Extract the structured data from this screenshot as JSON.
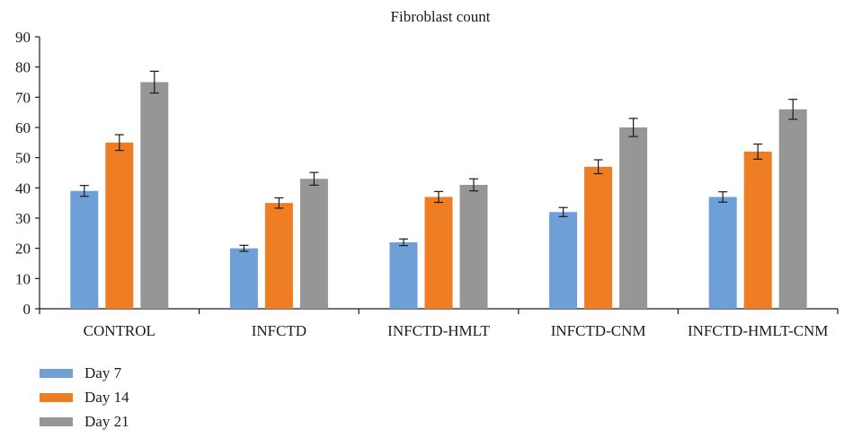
{
  "chart_data": {
    "type": "bar",
    "title": "Fibroblast count",
    "categories": [
      "CONTROL",
      "INFCTD",
      "INFCTD-HMLT",
      "INFCTD-CNM",
      "INFCTD-HMLT-CNM"
    ],
    "series": [
      {
        "name": "Day 7",
        "color": "#6e9fd6",
        "values": [
          39,
          20,
          22,
          32,
          37
        ],
        "errors": [
          1.8,
          1.0,
          1.1,
          1.5,
          1.7
        ]
      },
      {
        "name": "Day 14",
        "color": "#ee7d23",
        "values": [
          55,
          35,
          37,
          47,
          52
        ],
        "errors": [
          2.6,
          1.7,
          1.8,
          2.3,
          2.5
        ]
      },
      {
        "name": "Day 21",
        "color": "#969696",
        "values": [
          75,
          43,
          41,
          60,
          66
        ],
        "errors": [
          3.6,
          2.1,
          2.0,
          3.0,
          3.3
        ]
      }
    ],
    "ylim": [
      0,
      90
    ],
    "yticks": [
      0,
      10,
      20,
      30,
      40,
      50,
      60,
      70,
      80,
      90
    ],
    "xlabel": "",
    "ylabel": "",
    "grid": false,
    "legend_position": "bottom-left"
  }
}
